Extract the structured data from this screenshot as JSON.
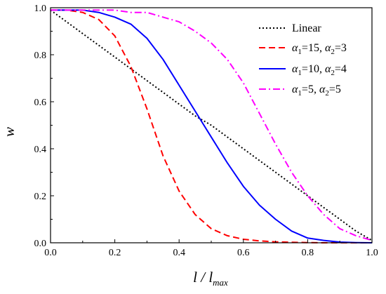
{
  "chart_data": {
    "type": "line",
    "xlabel": {
      "main": "l / l",
      "sub": "max"
    },
    "ylabel": "w",
    "xlim": [
      0.0,
      1.0
    ],
    "ylim": [
      0.0,
      1.0
    ],
    "x_ticks": [
      "0.0",
      "0.2",
      "0.4",
      "0.6",
      "0.8",
      "1.0"
    ],
    "y_ticks": [
      "0.0",
      "0.2",
      "0.4",
      "0.6",
      "0.8",
      "1.0"
    ],
    "grid": false,
    "legend_position": "top-right",
    "x": [
      0.0,
      0.05,
      0.1,
      0.15,
      0.2,
      0.25,
      0.3,
      0.35,
      0.4,
      0.45,
      0.5,
      0.55,
      0.6,
      0.65,
      0.7,
      0.75,
      0.8,
      0.85,
      0.9,
      0.95,
      1.0
    ],
    "series": [
      {
        "name": "Linear",
        "color": "#000000",
        "dash": "dotted",
        "values": [
          0.99,
          0.94,
          0.89,
          0.84,
          0.79,
          0.74,
          0.69,
          0.64,
          0.59,
          0.54,
          0.5,
          0.45,
          0.4,
          0.35,
          0.3,
          0.25,
          0.2,
          0.15,
          0.1,
          0.05,
          0.01
        ]
      },
      {
        "legend": {
          "a1": "15",
          "a2": "3"
        },
        "color": "#ff0000",
        "dash": "dashed",
        "values": [
          0.99,
          0.99,
          0.98,
          0.95,
          0.88,
          0.75,
          0.57,
          0.37,
          0.22,
          0.12,
          0.06,
          0.03,
          0.015,
          0.008,
          0.004,
          0.002,
          0.001,
          0.0,
          0.0,
          0.0,
          0.0
        ]
      },
      {
        "legend": {
          "a1": "10",
          "a2": "4"
        },
        "color": "#0000ff",
        "dash": "solid",
        "values": [
          0.99,
          0.99,
          0.99,
          0.98,
          0.96,
          0.93,
          0.87,
          0.78,
          0.67,
          0.56,
          0.45,
          0.34,
          0.24,
          0.16,
          0.1,
          0.05,
          0.02,
          0.01,
          0.003,
          0.001,
          0.0
        ]
      },
      {
        "legend": {
          "a1": "5",
          "a2": "5"
        },
        "color": "#ff00ff",
        "dash": "dashdot",
        "values": [
          0.99,
          0.99,
          0.99,
          0.99,
          0.99,
          0.98,
          0.98,
          0.96,
          0.94,
          0.9,
          0.85,
          0.78,
          0.68,
          0.55,
          0.42,
          0.3,
          0.2,
          0.12,
          0.06,
          0.03,
          0.01
        ]
      }
    ]
  }
}
